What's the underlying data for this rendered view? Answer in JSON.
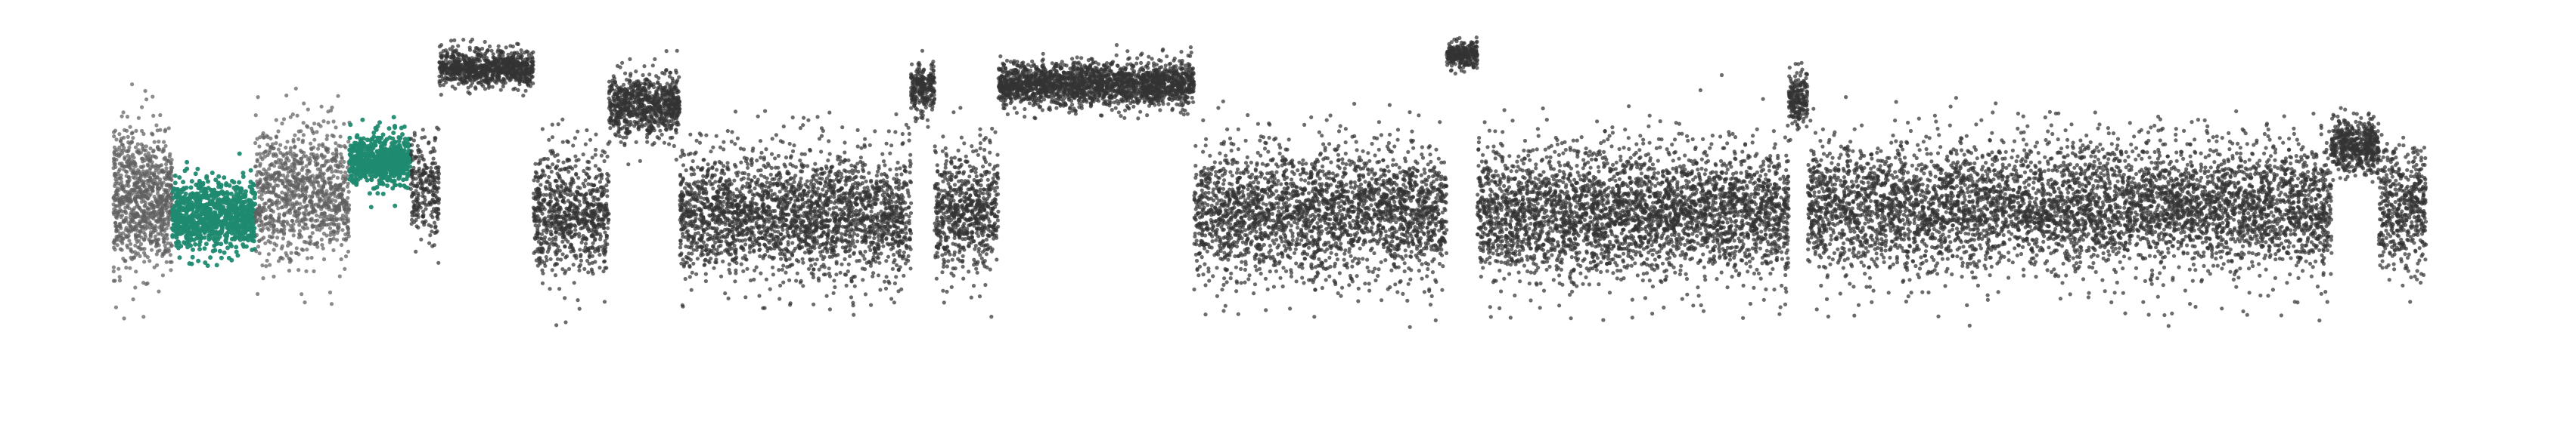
{
  "chart_data": {
    "type": "scatter",
    "title": "",
    "xlabel": "",
    "ylabel": "",
    "axes_visible": false,
    "grid": false,
    "legend": "none",
    "xlim": [
      0,
      100
    ],
    "ylim": [
      -1.0,
      1.0
    ],
    "point_density_note_free": true,
    "colors": {
      "default": "#333333",
      "highlight": "#1f8a70",
      "gray": "#5f5f5f"
    },
    "segments": [
      {
        "name": "",
        "x_start": 0.0,
        "x_end": 2.5,
        "level": 0.1,
        "spread": 0.3,
        "color": "gray",
        "n": 900
      },
      {
        "name": "",
        "x_start": 2.5,
        "x_end": 6.0,
        "level": 0.03,
        "spread": 0.16,
        "color": "highlight",
        "n": 900
      },
      {
        "name": "",
        "x_start": 6.0,
        "x_end": 10.0,
        "level": 0.13,
        "spread": 0.3,
        "color": "gray",
        "n": 1000
      },
      {
        "name": "",
        "x_start": 10.0,
        "x_end": 12.6,
        "level": 0.3,
        "spread": 0.12,
        "color": "highlight",
        "n": 650
      },
      {
        "name": "",
        "x_start": 12.6,
        "x_end": 13.8,
        "level": 0.16,
        "spread": 0.22,
        "color": "default",
        "n": 250
      },
      {
        "name": "",
        "x_start": 13.8,
        "x_end": 17.8,
        "level": 0.77,
        "spread": 0.08,
        "color": "default",
        "n": 900
      },
      {
        "name": "",
        "x_start": 17.8,
        "x_end": 21.0,
        "level": 0.03,
        "spread": 0.28,
        "color": "default",
        "n": 800
      },
      {
        "name": "",
        "x_start": 21.0,
        "x_end": 24.0,
        "level": 0.58,
        "spread": 0.14,
        "color": "default",
        "n": 800
      },
      {
        "name": "",
        "x_start": 24.0,
        "x_end": 33.8,
        "level": 0.03,
        "spread": 0.28,
        "color": "default",
        "n": 2500
      },
      {
        "name": "",
        "x_start": 33.8,
        "x_end": 34.8,
        "level": 0.67,
        "spread": 0.1,
        "color": "default",
        "n": 250
      },
      {
        "name": "",
        "x_start": 34.8,
        "x_end": 37.5,
        "level": 0.05,
        "spread": 0.27,
        "color": "default",
        "n": 700
      },
      {
        "name": "",
        "x_start": 37.5,
        "x_end": 45.8,
        "level": 0.69,
        "spread": 0.1,
        "color": "default",
        "n": 2100
      },
      {
        "name": "",
        "x_start": 45.8,
        "x_end": 56.5,
        "level": 0.04,
        "spread": 0.29,
        "color": "default",
        "n": 2600
      },
      {
        "name": "",
        "x_start": 56.5,
        "x_end": 57.8,
        "level": 0.84,
        "spread": 0.06,
        "color": "default",
        "n": 300
      },
      {
        "name": "",
        "x_start": 57.8,
        "x_end": 64.8,
        "level": 0.04,
        "spread": 0.28,
        "color": "default",
        "n": 1800
      },
      {
        "name": "",
        "x_start": 64.8,
        "x_end": 71.0,
        "level": 0.05,
        "spread": 0.28,
        "color": "default",
        "n": 1600
      },
      {
        "name": "",
        "x_start": 71.0,
        "x_end": 71.8,
        "level": 0.62,
        "spread": 0.12,
        "color": "default",
        "n": 200
      },
      {
        "name": "",
        "x_start": 71.8,
        "x_end": 94.0,
        "level": 0.07,
        "spread": 0.29,
        "color": "default",
        "n": 5200
      },
      {
        "name": "",
        "x_start": 94.0,
        "x_end": 96.0,
        "level": 0.38,
        "spread": 0.12,
        "color": "default",
        "n": 500
      },
      {
        "name": "",
        "x_start": 96.0,
        "x_end": 98.0,
        "level": 0.06,
        "spread": 0.28,
        "color": "default",
        "n": 500
      }
    ]
  }
}
